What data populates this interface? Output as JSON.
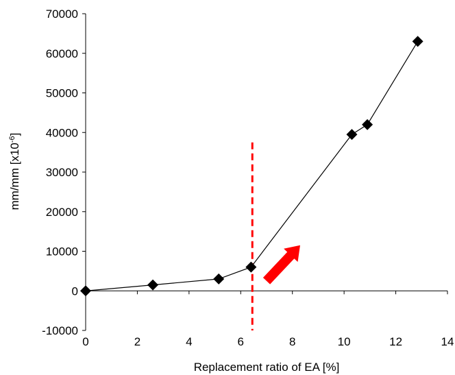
{
  "chart_data": {
    "type": "line",
    "title": "",
    "xlabel": "Replacement ratio of EA [%]",
    "ylabel": {
      "base": "mm/mm [x10",
      "exponent": "-6",
      "close": "]"
    },
    "xlim": [
      0,
      14
    ],
    "ylim": [
      -10000,
      70000
    ],
    "x_ticks": [
      0,
      2,
      4,
      6,
      8,
      10,
      12,
      14
    ],
    "x_tick_labels": [
      "0",
      "2",
      "4",
      "6",
      "8",
      "10",
      "12",
      "14"
    ],
    "y_ticks": [
      -10000,
      0,
      10000,
      20000,
      30000,
      40000,
      50000,
      60000,
      70000
    ],
    "y_tick_labels": [
      "-10000",
      "0",
      "10000",
      "20000",
      "30000",
      "40000",
      "50000",
      "60000",
      "70000"
    ],
    "grid": false,
    "legend": "none",
    "series": [
      {
        "marker": "diamond",
        "color": "#000000",
        "x": [
          0,
          2.6,
          5.15,
          6.4,
          10.3,
          10.9,
          12.85
        ],
        "y": [
          0,
          1500,
          3000,
          6000,
          39500,
          42000,
          63000
        ]
      }
    ],
    "annotations": [
      {
        "kind": "vertical-dashed-line",
        "color": "#ff0000",
        "x": 6.45,
        "y_range": [
          -10000,
          37500
        ]
      },
      {
        "kind": "arrow",
        "color": "#ff0000",
        "from": [
          7.0,
          2500
        ],
        "to": [
          8.3,
          11500
        ]
      }
    ]
  }
}
